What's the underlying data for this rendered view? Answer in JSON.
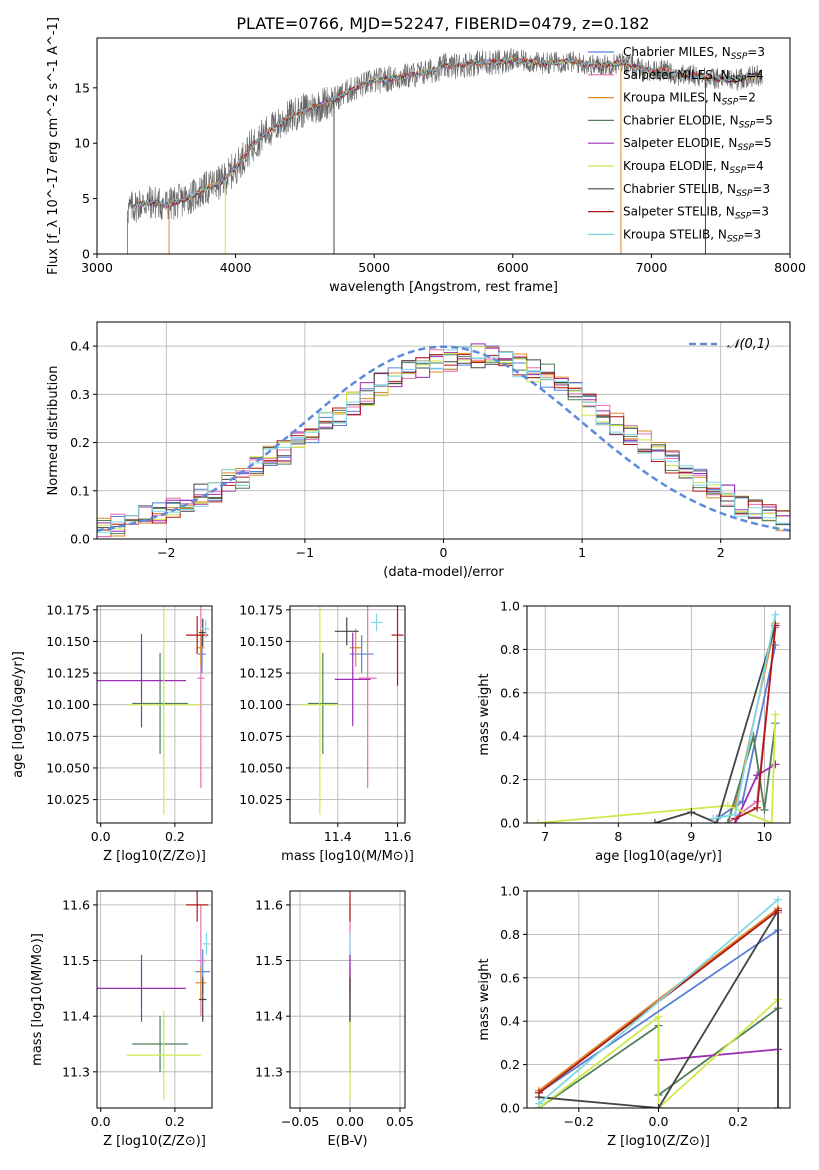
{
  "figure_title": "PLATE=0766, MJD=52247, FIBERID=0479, z=0.182",
  "colors": {
    "Chabrier MILES": "#5b7fd6",
    "Salpeter MILES": "#e86fb4",
    "Kroupa MILES": "#e08a2a",
    "Chabrier ELODIE": "#4f7f5a",
    "Salpeter ELODIE": "#9a2fb3",
    "Kroupa ELODIE": "#cfe84a",
    "Chabrier STELIB": "#444444",
    "Salpeter STELIB": "#b01818",
    "Kroupa STELIB": "#7fd8e6",
    "normal": "#5b8bd9"
  },
  "chart_data": [
    {
      "id": "spectrum",
      "type": "line",
      "title": "PLATE=0766, MJD=52247, FIBERID=0479, z=0.182",
      "xlabel": "wavelength [Angstrom, rest frame]",
      "ylabel": "Flux [f_λ 10^-17 erg cm^-2 s^-1 A^-1]",
      "xlim": [
        3000,
        8000
      ],
      "ylim": [
        0,
        19.5
      ],
      "xticks": [
        3000,
        4000,
        5000,
        6000,
        7000,
        8000
      ],
      "yticks": [
        0,
        5,
        10,
        15
      ],
      "grid": false,
      "legend_position": "top-right",
      "legend": [
        {
          "base": "Chabrier MILES, N",
          "sub": "SSP",
          "tail": "=3",
          "key": "Chabrier MILES"
        },
        {
          "base": "Salpeter MILES, N",
          "sub": "SSP",
          "tail": "=4",
          "key": "Salpeter MILES"
        },
        {
          "base": "Kroupa MILES, N",
          "sub": "SSP",
          "tail": "=2",
          "key": "Kroupa MILES"
        },
        {
          "base": "Chabrier ELODIE, N",
          "sub": "SSP",
          "tail": "=5",
          "key": "Chabrier ELODIE"
        },
        {
          "base": "Salpeter ELODIE, N",
          "sub": "SSP",
          "tail": "=5",
          "key": "Salpeter ELODIE"
        },
        {
          "base": "Kroupa ELODIE, N",
          "sub": "SSP",
          "tail": "=4",
          "key": "Kroupa ELODIE"
        },
        {
          "base": "Chabrier STELIB, N",
          "sub": "SSP",
          "tail": "=3",
          "key": "Chabrier STELIB"
        },
        {
          "base": "Salpeter STELIB, N",
          "sub": "SSP",
          "tail": "=3",
          "key": "Salpeter STELIB"
        },
        {
          "base": "Kroupa STELIB, N",
          "sub": "SSP",
          "tail": "=3",
          "key": "Kroupa STELIB"
        }
      ],
      "x": [
        3200,
        3300,
        3400,
        3500,
        3600,
        3700,
        3800,
        3900,
        4000,
        4100,
        4200,
        4300,
        4400,
        4500,
        4600,
        4700,
        4800,
        4900,
        5000,
        5100,
        5200,
        5300,
        5400,
        5500,
        5600,
        5700,
        5800,
        5900,
        6000,
        6100,
        6200,
        6300,
        6400,
        6500,
        6600,
        6700,
        6800,
        6900,
        7000,
        7100,
        7200,
        7300,
        7400,
        7500,
        7600,
        7700,
        7800
      ],
      "y": [
        3.8,
        4.5,
        4.7,
        4.4,
        4.8,
        5.3,
        6.0,
        6.5,
        7.8,
        9.5,
        10.8,
        11.6,
        12.5,
        13.0,
        13.4,
        13.9,
        14.6,
        15.2,
        15.6,
        15.8,
        16.0,
        16.2,
        16.5,
        16.9,
        17.0,
        17.2,
        17.3,
        17.3,
        17.5,
        17.4,
        17.2,
        17.3,
        17.4,
        17.2,
        17.0,
        17.1,
        17.3,
        16.8,
        16.5,
        16.6,
        16.1,
        16.2,
        15.9,
        15.8,
        15.7,
        16.0,
        16.2
      ],
      "data_start": 3220,
      "data_end": 7800
    },
    {
      "id": "residuals",
      "type": "line",
      "xlabel": "(data-model)/error",
      "ylabel": "Normed distribution",
      "xlim": [
        -2.5,
        2.5
      ],
      "ylim": [
        0,
        0.45
      ],
      "xticks": [
        -2,
        -1,
        0,
        1,
        2
      ],
      "yticks": [
        0.0,
        0.1,
        0.2,
        0.3,
        0.4
      ],
      "grid": true,
      "legend_position": "top-right",
      "normal_label": "N(0,1)",
      "bin_edges_start": -2.5,
      "bin_width": 0.1,
      "histogram_envelope": [
        0.02,
        0.03,
        0.04,
        0.05,
        0.05,
        0.06,
        0.07,
        0.09,
        0.1,
        0.12,
        0.13,
        0.15,
        0.17,
        0.18,
        0.2,
        0.22,
        0.24,
        0.26,
        0.28,
        0.3,
        0.32,
        0.33,
        0.35,
        0.36,
        0.37,
        0.37,
        0.38,
        0.38,
        0.38,
        0.37,
        0.36,
        0.35,
        0.34,
        0.32,
        0.3,
        0.28,
        0.26,
        0.24,
        0.22,
        0.2,
        0.18,
        0.16,
        0.14,
        0.12,
        0.1,
        0.09,
        0.07,
        0.06,
        0.05,
        0.04
      ]
    },
    {
      "id": "age-vs-z",
      "type": "scatter",
      "xlabel": "Z [log10(Z/Z⊙)]",
      "ylabel": "age [log10(age/yr)]",
      "xlim": [
        -0.01,
        0.3
      ],
      "ylim": [
        10.0065,
        10.178
      ],
      "xticks": [
        0.0,
        0.2
      ],
      "yticks": [
        10.025,
        10.05,
        10.075,
        10.1,
        10.125,
        10.15,
        10.175
      ],
      "grid": true,
      "points": [
        {
          "s": "Chabrier MILES",
          "x": 0.273,
          "y": 10.14,
          "xe": 0.01,
          "ye": 0.015
        },
        {
          "s": "Salpeter MILES",
          "x": 0.27,
          "y": 10.121,
          "xe": 0.01,
          "ye": 0.087
        },
        {
          "s": "Kroupa MILES",
          "x": 0.27,
          "y": 10.145,
          "xe": 0.01,
          "ye": 0.015
        },
        {
          "s": "Chabrier ELODIE",
          "x": 0.16,
          "y": 10.101,
          "xe": 0.075,
          "ye": 0.04
        },
        {
          "s": "Salpeter ELODIE",
          "x": 0.11,
          "y": 10.119,
          "xe": 0.12,
          "ye": 0.037
        },
        {
          "s": "Kroupa ELODIE",
          "x": 0.17,
          "y": 10.1,
          "xe": 0.1,
          "ye": 0.087
        },
        {
          "s": "Chabrier STELIB",
          "x": 0.275,
          "y": 10.157,
          "xe": 0.01,
          "ye": 0.011
        },
        {
          "s": "Salpeter STELIB",
          "x": 0.26,
          "y": 10.155,
          "xe": 0.03,
          "ye": 0.015
        },
        {
          "s": "Kroupa STELIB",
          "x": 0.283,
          "y": 10.16,
          "xe": 0.01,
          "ye": 0.007
        }
      ]
    },
    {
      "id": "age-vs-mass",
      "type": "scatter",
      "xlabel": "mass [log10(M/M⊙)]",
      "ylabel": "",
      "xlim": [
        11.24,
        11.625
      ],
      "ylim": [
        10.0065,
        10.178
      ],
      "xticks": [
        11.4,
        11.6
      ],
      "yticks": [
        10.025,
        10.05,
        10.075,
        10.1,
        10.125,
        10.15,
        10.175
      ],
      "grid": true,
      "points": [
        {
          "s": "Chabrier MILES",
          "x": 11.48,
          "y": 10.14,
          "xe": 0.04,
          "ye": 0.015
        },
        {
          "s": "Salpeter MILES",
          "x": 11.5,
          "y": 10.121,
          "xe": 0.03,
          "ye": 0.087
        },
        {
          "s": "Kroupa MILES",
          "x": 11.46,
          "y": 10.145,
          "xe": 0.02,
          "ye": 0.015
        },
        {
          "s": "Chabrier ELODIE",
          "x": 11.35,
          "y": 10.101,
          "xe": 0.05,
          "ye": 0.04
        },
        {
          "s": "Salpeter ELODIE",
          "x": 11.45,
          "y": 10.12,
          "xe": 0.06,
          "ye": 0.037
        },
        {
          "s": "Kroupa ELODIE",
          "x": 11.34,
          "y": 10.1,
          "xe": 0.06,
          "ye": 0.087
        },
        {
          "s": "Chabrier STELIB",
          "x": 11.43,
          "y": 10.158,
          "xe": 0.04,
          "ye": 0.011
        },
        {
          "s": "Salpeter STELIB",
          "x": 11.6,
          "y": 10.155,
          "xe": 0.02,
          "ye": 0.04
        },
        {
          "s": "Kroupa STELIB",
          "x": 11.53,
          "y": 10.165,
          "xe": 0.02,
          "ye": 0.007
        }
      ]
    },
    {
      "id": "weight-vs-age",
      "type": "line",
      "xlabel": "age [log10(age/yr)]",
      "ylabel": "mass weight",
      "xlim": [
        6.75,
        10.35
      ],
      "ylim": [
        0,
        1.0
      ],
      "xticks": [
        7,
        8,
        9,
        10
      ],
      "yticks": [
        0.0,
        0.2,
        0.4,
        0.6,
        0.8,
        1.0
      ],
      "grid": true,
      "series": [
        {
          "s": "Chabrier MILES",
          "x": [
            9.35,
            9.7,
            10.15
          ],
          "y": [
            0.02,
            0.1,
            0.82
          ]
        },
        {
          "s": "Salpeter MILES",
          "x": [
            9.5,
            9.9,
            10.15
          ],
          "y": [
            0.0,
            0.1,
            0.9
          ]
        },
        {
          "s": "Kroupa MILES",
          "x": [
            9.6,
            10.15
          ],
          "y": [
            0.08,
            0.92
          ]
        },
        {
          "s": "Chabrier ELODIE",
          "x": [
            9.5,
            9.85,
            10.0,
            10.15
          ],
          "y": [
            0.0,
            0.4,
            0.06,
            0.46
          ]
        },
        {
          "s": "Salpeter ELODIE",
          "x": [
            9.6,
            9.9,
            10.15
          ],
          "y": [
            0.0,
            0.22,
            0.27
          ]
        },
        {
          "s": "Kroupa ELODIE",
          "x": [
            6.9,
            9.5,
            10.1,
            10.15
          ],
          "y": [
            0.0,
            0.08,
            0.0,
            0.5
          ]
        },
        {
          "s": "Chabrier STELIB",
          "x": [
            8.5,
            9.0,
            9.35,
            10.15
          ],
          "y": [
            0.0,
            0.05,
            0.0,
            0.91
          ]
        },
        {
          "s": "Salpeter STELIB",
          "x": [
            9.6,
            9.9,
            10.15
          ],
          "y": [
            0.02,
            0.07,
            0.91
          ]
        },
        {
          "s": "Kroupa STELIB",
          "x": [
            9.3,
            9.6,
            10.15
          ],
          "y": [
            0.02,
            0.04,
            0.96
          ]
        }
      ]
    },
    {
      "id": "mass-vs-z",
      "type": "scatter",
      "xlabel": "Z [log10(Z/Z⊙)]",
      "ylabel": "mass [log10(M/M⊙)]",
      "xlim": [
        -0.01,
        0.3
      ],
      "ylim": [
        11.235,
        11.625
      ],
      "xticks": [
        0.0,
        0.2
      ],
      "yticks": [
        11.3,
        11.4,
        11.5,
        11.6
      ],
      "grid": true,
      "points": [
        {
          "s": "Chabrier MILES",
          "x": 0.275,
          "y": 11.48,
          "xe": 0.02,
          "ye": 0.04
        },
        {
          "s": "Salpeter MILES",
          "x": 0.27,
          "y": 11.5,
          "xe": 0.01,
          "ye": 0.1
        },
        {
          "s": "Kroupa MILES",
          "x": 0.27,
          "y": 11.46,
          "xe": 0.015,
          "ye": 0.03
        },
        {
          "s": "Chabrier ELODIE",
          "x": 0.16,
          "y": 11.35,
          "xe": 0.075,
          "ye": 0.05
        },
        {
          "s": "Salpeter ELODIE",
          "x": 0.11,
          "y": 11.45,
          "xe": 0.12,
          "ye": 0.06
        },
        {
          "s": "Kroupa ELODIE",
          "x": 0.17,
          "y": 11.33,
          "xe": 0.1,
          "ye": 0.08
        },
        {
          "s": "Chabrier STELIB",
          "x": 0.275,
          "y": 11.43,
          "xe": 0.01,
          "ye": 0.04
        },
        {
          "s": "Salpeter STELIB",
          "x": 0.26,
          "y": 11.6,
          "xe": 0.03,
          "ye": 0.03
        },
        {
          "s": "Kroupa STELIB",
          "x": 0.285,
          "y": 11.53,
          "xe": 0.01,
          "ye": 0.02
        }
      ]
    },
    {
      "id": "mass-vs-ebv",
      "type": "scatter",
      "xlabel": "E(B-V)",
      "ylabel": "",
      "xlim": [
        -0.06,
        0.055
      ],
      "ylim": [
        11.235,
        11.625
      ],
      "xticks": [
        -0.05,
        0.0,
        0.05
      ],
      "yticks": [
        11.3,
        11.4,
        11.5,
        11.6
      ],
      "grid": true,
      "points": [
        {
          "s": "Chabrier MILES",
          "x": 0.0,
          "y": 11.48,
          "xe": 0.0,
          "ye": 0.04
        },
        {
          "s": "Salpeter MILES",
          "x": 0.0,
          "y": 11.5,
          "xe": 0.0,
          "ye": 0.1
        },
        {
          "s": "Kroupa MILES",
          "x": 0.0,
          "y": 11.46,
          "xe": 0.0,
          "ye": 0.03
        },
        {
          "s": "Chabrier ELODIE",
          "x": 0.0,
          "y": 11.35,
          "xe": 0.0,
          "ye": 0.05
        },
        {
          "s": "Salpeter ELODIE",
          "x": 0.0,
          "y": 11.45,
          "xe": 0.0,
          "ye": 0.06
        },
        {
          "s": "Kroupa ELODIE",
          "x": 0.0,
          "y": 11.33,
          "xe": 0.0,
          "ye": 0.08
        },
        {
          "s": "Chabrier STELIB",
          "x": 0.0,
          "y": 11.43,
          "xe": 0.0,
          "ye": 0.04
        },
        {
          "s": "Salpeter STELIB",
          "x": 0.0,
          "y": 11.6,
          "xe": 0.0,
          "ye": 0.03
        },
        {
          "s": "Kroupa STELIB",
          "x": 0.0,
          "y": 11.53,
          "xe": 0.0,
          "ye": 0.02
        }
      ]
    },
    {
      "id": "weight-vs-z",
      "type": "line",
      "xlabel": "Z [log10(Z/Z⊙)]",
      "ylabel": "mass weight",
      "xlim": [
        -0.33,
        0.33
      ],
      "ylim": [
        0,
        1.0
      ],
      "xticks": [
        -0.2,
        0.0,
        0.2
      ],
      "yticks": [
        0.0,
        0.2,
        0.4,
        0.6,
        0.8,
        1.0
      ],
      "grid": true,
      "series": [
        {
          "s": "Chabrier MILES",
          "x": [
            -0.3,
            0.3
          ],
          "y": [
            0.07,
            0.82
          ]
        },
        {
          "s": "Salpeter MILES",
          "x": [
            0.3,
            0.3
          ],
          "y": [
            0.0,
            0.9
          ]
        },
        {
          "s": "Kroupa MILES",
          "x": [
            -0.3,
            0.3
          ],
          "y": [
            0.08,
            0.92
          ]
        },
        {
          "s": "Chabrier ELODIE",
          "x": [
            -0.3,
            0.0,
            0.0,
            0.3
          ],
          "y": [
            0.0,
            0.38,
            0.06,
            0.46
          ]
        },
        {
          "s": "Salpeter ELODIE",
          "x": [
            0.0,
            0.3
          ],
          "y": [
            0.22,
            0.27
          ]
        },
        {
          "s": "Kroupa ELODIE",
          "x": [
            -0.3,
            0.0,
            0.0,
            0.3
          ],
          "y": [
            0.0,
            0.42,
            0.0,
            0.5
          ]
        },
        {
          "s": "Chabrier STELIB",
          "x": [
            -0.3,
            0.0,
            0.3,
            0.3
          ],
          "y": [
            0.05,
            0.0,
            0.91,
            0.0
          ]
        },
        {
          "s": "Salpeter STELIB",
          "x": [
            -0.3,
            0.3
          ],
          "y": [
            0.07,
            0.91
          ]
        },
        {
          "s": "Kroupa STELIB",
          "x": [
            -0.3,
            0.3
          ],
          "y": [
            0.02,
            0.96
          ]
        }
      ]
    }
  ]
}
